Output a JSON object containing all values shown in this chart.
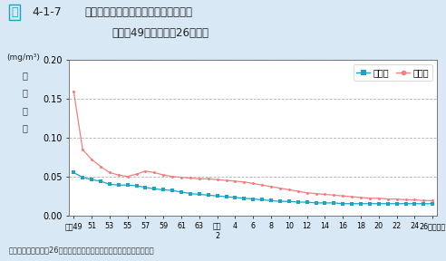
{
  "title_fig": "図",
  "title_num": "4-1-7",
  "title_main": "浮遊粒子状物質濃度の年平均値の推移",
  "title_sub": "（昭和49年度〜平成26年度）",
  "ylabel_unit": "(mg/m³)",
  "ylabel_chars": [
    "年",
    "平",
    "均",
    "値"
  ],
  "xlabel_bottom": "資料：環境省「平成26年度大気汚染状況について（報道発表資料）」",
  "ylim": [
    0.0,
    0.2
  ],
  "yticks": [
    0.0,
    0.05,
    0.1,
    0.15,
    0.2
  ],
  "background_color": "#d9e8f5",
  "plot_bg_color": "#ffffff",
  "general_color": "#1ba3c6",
  "exhaust_color": "#f08080",
  "fig_icon_color": "#1ba3c6",
  "legend_general": "一般局",
  "legend_exhaust": "自排局",
  "x_tick_labels": [
    "昭和49",
    "51",
    "53",
    "55",
    "57",
    "59",
    "61",
    "63",
    "平成\n2",
    "4",
    "6",
    "8",
    "10",
    "12",
    "14",
    "16",
    "18",
    "20",
    "22",
    "24",
    "26（年度）"
  ],
  "general_values": [
    0.055,
    0.049,
    0.046,
    0.044,
    0.04,
    0.039,
    0.039,
    0.038,
    0.036,
    0.034,
    0.033,
    0.032,
    0.03,
    0.028,
    0.027,
    0.026,
    0.025,
    0.024,
    0.023,
    0.022,
    0.021,
    0.02,
    0.019,
    0.018,
    0.018,
    0.017,
    0.017,
    0.016,
    0.016,
    0.016,
    0.015,
    0.015,
    0.015,
    0.015,
    0.015,
    0.015,
    0.015,
    0.015,
    0.015,
    0.015,
    0.015
  ],
  "exhaust_values": [
    0.16,
    0.085,
    0.072,
    0.063,
    0.055,
    0.052,
    0.05,
    0.053,
    0.057,
    0.055,
    0.052,
    0.05,
    0.049,
    0.048,
    0.047,
    0.047,
    0.046,
    0.045,
    0.044,
    0.043,
    0.041,
    0.039,
    0.037,
    0.035,
    0.033,
    0.031,
    0.029,
    0.028,
    0.027,
    0.026,
    0.025,
    0.024,
    0.023,
    0.022,
    0.022,
    0.021,
    0.021,
    0.02,
    0.02,
    0.019,
    0.019
  ]
}
